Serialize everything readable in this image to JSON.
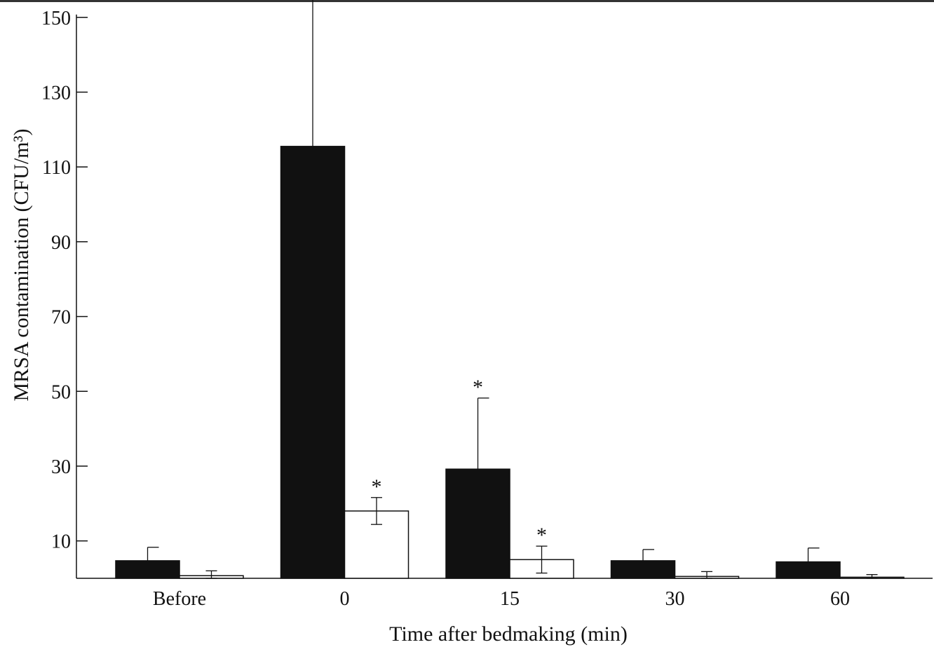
{
  "chart_data": {
    "type": "bar",
    "title": "",
    "xlabel": "Time after bedmaking (min)",
    "ylabel": "MRSA contamination (CFU/m³)",
    "ylim": [
      0,
      150
    ],
    "yticks": [
      10,
      30,
      50,
      70,
      90,
      110,
      130,
      150
    ],
    "categories": [
      "Before",
      "0",
      "15",
      "30",
      "60"
    ],
    "grid": false,
    "legend": "none",
    "series": [
      {
        "fill": "#111111",
        "values": [
          4.7,
          115.5,
          29.2,
          4.7,
          4.4
        ],
        "errors": [
          3.6,
          40.0,
          19.0,
          3.0,
          3.7
        ],
        "significant": [
          false,
          false,
          true,
          false,
          false
        ]
      },
      {
        "fill": "#ffffff",
        "values": [
          0.7,
          18.0,
          5.0,
          0.5,
          0.3
        ],
        "errors": [
          1.3,
          3.6,
          3.6,
          1.3,
          0.7
        ],
        "significant": [
          false,
          true,
          true,
          false,
          false
        ]
      }
    ],
    "significance_marker": "*"
  }
}
